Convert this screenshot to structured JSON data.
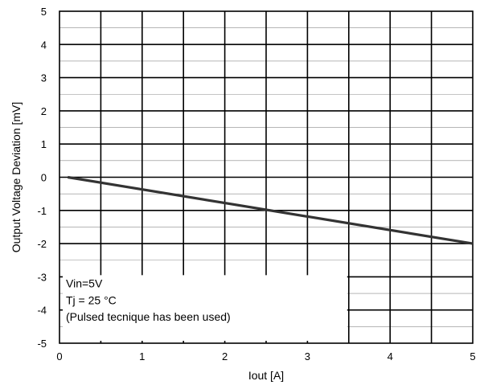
{
  "chart_data": {
    "type": "line",
    "title": "",
    "xlabel": "Iout [A]",
    "ylabel": "Output  Voltage  Deviation  [mV]",
    "xlim": [
      0,
      5
    ],
    "ylim": [
      -5,
      5
    ],
    "grid": true,
    "x_ticks": [
      "0",
      "1",
      "2",
      "3",
      "4",
      "5"
    ],
    "y_ticks": [
      "5",
      "4",
      "3",
      "2",
      "1",
      "0",
      "-1",
      "-2",
      "-3",
      "-4",
      "-5"
    ],
    "series": [
      {
        "color": "#333333",
        "x": [
          0.1,
          5.0
        ],
        "y": [
          0.0,
          -2.0
        ]
      }
    ],
    "annotations": [
      "Vin=5V",
      "Tj = 25 °C",
      "(Pulsed tecnique has  been used)"
    ]
  }
}
